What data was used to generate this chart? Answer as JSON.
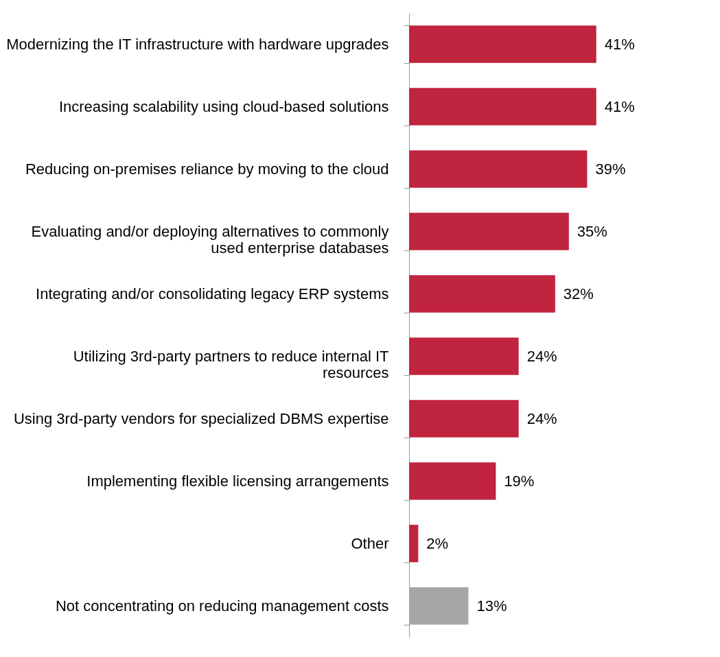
{
  "chart_data": {
    "type": "bar",
    "orientation": "horizontal",
    "categories": [
      "Modernizing the IT infrastructure with hardware upgrades",
      "Increasing scalability using cloud-based solutions",
      "Reducing on-premises reliance by moving to the cloud",
      "Evaluating and/or deploying alternatives to commonly used enterprise databases",
      "Integrating and/or consolidating legacy ERP systems",
      "Utilizing 3rd-party partners to reduce internal IT resources",
      "Using 3rd-party vendors for specialized DBMS expertise",
      "Implementing flexible licensing arrangements",
      "Other",
      "Not concentrating on reducing management costs"
    ],
    "values": [
      41,
      41,
      39,
      35,
      32,
      24,
      24,
      19,
      2,
      13
    ],
    "value_labels": [
      "41%",
      "41%",
      "39%",
      "35%",
      "32%",
      "24%",
      "24%",
      "19%",
      "2%",
      "13%"
    ],
    "colors": [
      "#c0243f",
      "#c0243f",
      "#c0243f",
      "#c0243f",
      "#c0243f",
      "#c0243f",
      "#c0243f",
      "#c0243f",
      "#c0243f",
      "#a6a6a6"
    ],
    "grid": false
  }
}
